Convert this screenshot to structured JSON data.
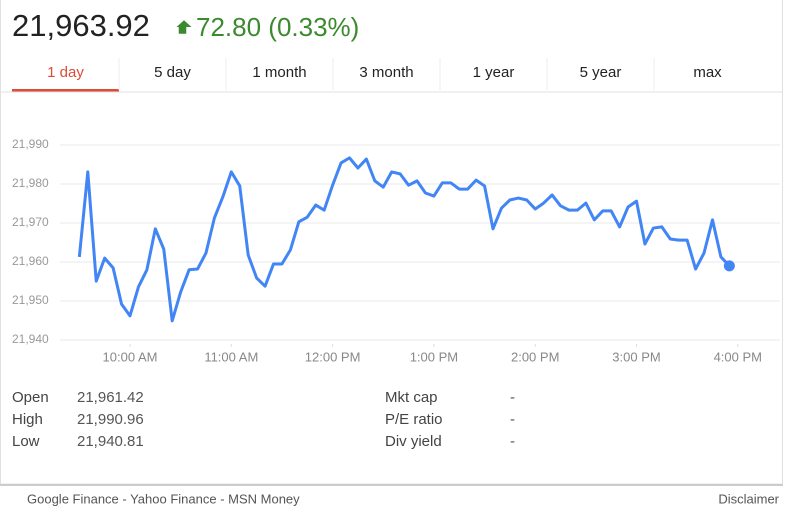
{
  "header": {
    "price": "21,963.92",
    "change": "72.80 (0.33%)"
  },
  "tabs": [
    "1 day",
    "5 day",
    "1 month",
    "3 month",
    "1 year",
    "5 year",
    "max"
  ],
  "active_tab": 0,
  "chart_data": {
    "type": "line",
    "x": [
      570,
      575,
      580,
      585,
      590,
      595,
      600,
      605,
      610,
      615,
      620,
      625,
      630,
      635,
      640,
      645,
      650,
      655,
      660,
      665,
      670,
      675,
      680,
      685,
      690,
      695,
      700,
      705,
      710,
      715,
      720,
      725,
      730,
      735,
      740,
      745,
      750,
      755,
      760,
      765,
      770,
      775,
      780,
      785,
      790,
      795,
      800,
      805,
      810,
      815,
      820,
      825,
      830,
      835,
      840,
      845,
      850,
      855,
      860,
      865,
      870,
      875,
      880,
      885,
      890,
      895,
      900,
      905,
      910,
      915,
      920,
      925,
      930,
      935,
      940,
      945,
      950,
      955
    ],
    "series": [
      {
        "color": "#4285f4",
        "values": [
          21961.3,
          21983.1,
          21955.1,
          21961.0,
          21958.5,
          21949.2,
          21946.2,
          21953.6,
          21958.0,
          21968.5,
          21963.3,
          21944.9,
          21952.3,
          21958.0,
          21958.2,
          21962.3,
          21971.3,
          21976.7,
          21983.1,
          21979.5,
          21961.8,
          21955.9,
          21953.8,
          21959.5,
          21959.5,
          21963.1,
          21970.3,
          21971.5,
          21974.6,
          21973.3,
          21979.7,
          21985.4,
          21986.7,
          21984.1,
          21986.4,
          21980.8,
          21979.2,
          21983.1,
          21982.6,
          21979.7,
          21980.8,
          21977.7,
          21976.9,
          21980.3,
          21980.3,
          21978.7,
          21978.7,
          21981.0,
          21979.5,
          21968.5,
          21973.8,
          21975.9,
          21976.4,
          21975.9,
          21973.6,
          21975.1,
          21977.2,
          21974.4,
          21973.3,
          21973.3,
          21975.1,
          21970.8,
          21973.1,
          21973.1,
          21969.0,
          21974.1,
          21975.6,
          21964.6,
          21968.7,
          21969.0,
          21965.9,
          21965.6,
          21965.6,
          21958.2,
          21962.3,
          21970.8,
          21961.3,
          21959.0
        ]
      }
    ],
    "xlim": [
      555,
      980
    ],
    "xticks": [
      {
        "value": 600,
        "label": "10:00 AM"
      },
      {
        "value": 660,
        "label": "11:00 AM"
      },
      {
        "value": 720,
        "label": "12:00 PM"
      },
      {
        "value": 780,
        "label": "1:00 PM"
      },
      {
        "value": 840,
        "label": "2:00 PM"
      },
      {
        "value": 900,
        "label": "3:00 PM"
      },
      {
        "value": 960,
        "label": "4:00 PM"
      }
    ],
    "ylim": [
      21939,
      21994
    ],
    "yticks": [
      {
        "value": 21940,
        "label": "21,940"
      },
      {
        "value": 21950,
        "label": "21,950"
      },
      {
        "value": 21960,
        "label": "21,960"
      },
      {
        "value": 21970,
        "label": "21,970"
      },
      {
        "value": 21980,
        "label": "21,980"
      },
      {
        "value": 21990,
        "label": "21,990"
      }
    ],
    "grid": true
  },
  "stats": {
    "left": [
      [
        "Open",
        "21,961.42"
      ],
      [
        "High",
        "21,990.96"
      ],
      [
        "Low",
        "21,940.81"
      ]
    ],
    "right": [
      [
        "Mkt cap",
        "-"
      ],
      [
        "P/E ratio",
        "-"
      ],
      [
        "Div yield",
        "-"
      ]
    ]
  },
  "footer": {
    "sources": "Google Finance - Yahoo Finance - MSN Money",
    "disclaimer": "Disclaimer"
  }
}
